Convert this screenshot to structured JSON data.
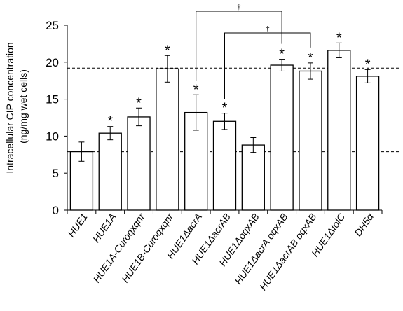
{
  "chart_data": {
    "type": "bar",
    "ylabel_line1": "Intracellular CIP concentration",
    "ylabel_line2": "(ng/mg wet cells)",
    "ylim": [
      0,
      25
    ],
    "yticks": [
      "0",
      "5",
      "10",
      "15",
      "20",
      "25"
    ],
    "categories": [
      "HUE1",
      "HUE1A",
      "HUE1A-Curoqxqnr",
      "HUE1B-Curoqxqnr",
      "HUE1ΔacrA",
      "HUE1ΔacrAB",
      "HUE1ΔoqxAB",
      "HUE1ΔacrA oqxAB",
      "HUE1ΔacrAB oqxAB",
      "HUE1ΔtolC",
      "DH5α"
    ],
    "values": [
      7.9,
      10.4,
      12.6,
      19.1,
      13.2,
      12.0,
      8.8,
      19.6,
      18.8,
      21.6,
      18.1
    ],
    "errors": [
      1.3,
      0.9,
      1.2,
      1.8,
      2.4,
      1.1,
      1.0,
      0.8,
      1.1,
      1.0,
      0.9
    ],
    "significance": [
      "",
      "*",
      "*",
      "*",
      "*",
      "*",
      "",
      "*",
      "*",
      "*",
      "*"
    ],
    "reference_lines": [
      7.9,
      19.2
    ],
    "brackets": [
      {
        "from": 4,
        "to": 7,
        "label": "†"
      },
      {
        "from": 5,
        "to": 8,
        "label": "†"
      }
    ],
    "grid": false,
    "legend": "none"
  }
}
